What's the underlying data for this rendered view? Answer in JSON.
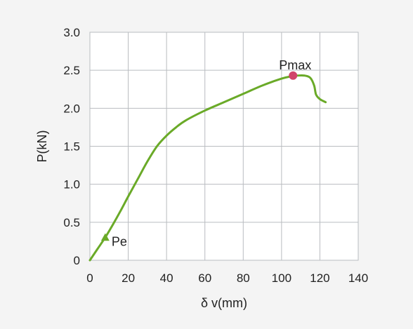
{
  "chart_data": {
    "type": "line",
    "title": "",
    "xlabel": "δ v(mm)",
    "ylabel": "P(kN)",
    "xlim": [
      0,
      140
    ],
    "ylim": [
      0,
      3.0
    ],
    "xticks": [
      0,
      20,
      40,
      60,
      80,
      100,
      120,
      140
    ],
    "yticks": [
      0,
      0.5,
      1.0,
      1.5,
      2.0,
      2.5,
      3.0
    ],
    "xtick_labels": [
      "0",
      "20",
      "40",
      "60",
      "80",
      "100",
      "120",
      "140"
    ],
    "ytick_labels": [
      "0",
      "0.5",
      "1.0",
      "1.5",
      "2.0",
      "2.5",
      "3.0"
    ],
    "grid": true,
    "series": [
      {
        "color": "#6aaa28",
        "x": [
          0,
          4,
          8,
          12,
          16,
          20,
          25,
          30,
          35,
          40,
          45,
          50,
          60,
          70,
          80,
          90,
          100,
          105,
          108,
          112,
          115,
          117,
          118,
          120,
          123
        ],
        "y": [
          0,
          0.15,
          0.3,
          0.47,
          0.65,
          0.84,
          1.07,
          1.3,
          1.5,
          1.64,
          1.75,
          1.84,
          1.97,
          2.08,
          2.19,
          2.3,
          2.39,
          2.42,
          2.43,
          2.43,
          2.4,
          2.3,
          2.18,
          2.12,
          2.08
        ]
      }
    ],
    "annotations": [
      {
        "label": "Pe",
        "x": 8,
        "y": 0.3,
        "marker": "triangle",
        "color": "#6aaa28"
      },
      {
        "label": "Pmax",
        "x": 106,
        "y": 2.43,
        "marker": "circle",
        "color": "#d1436a"
      }
    ]
  }
}
